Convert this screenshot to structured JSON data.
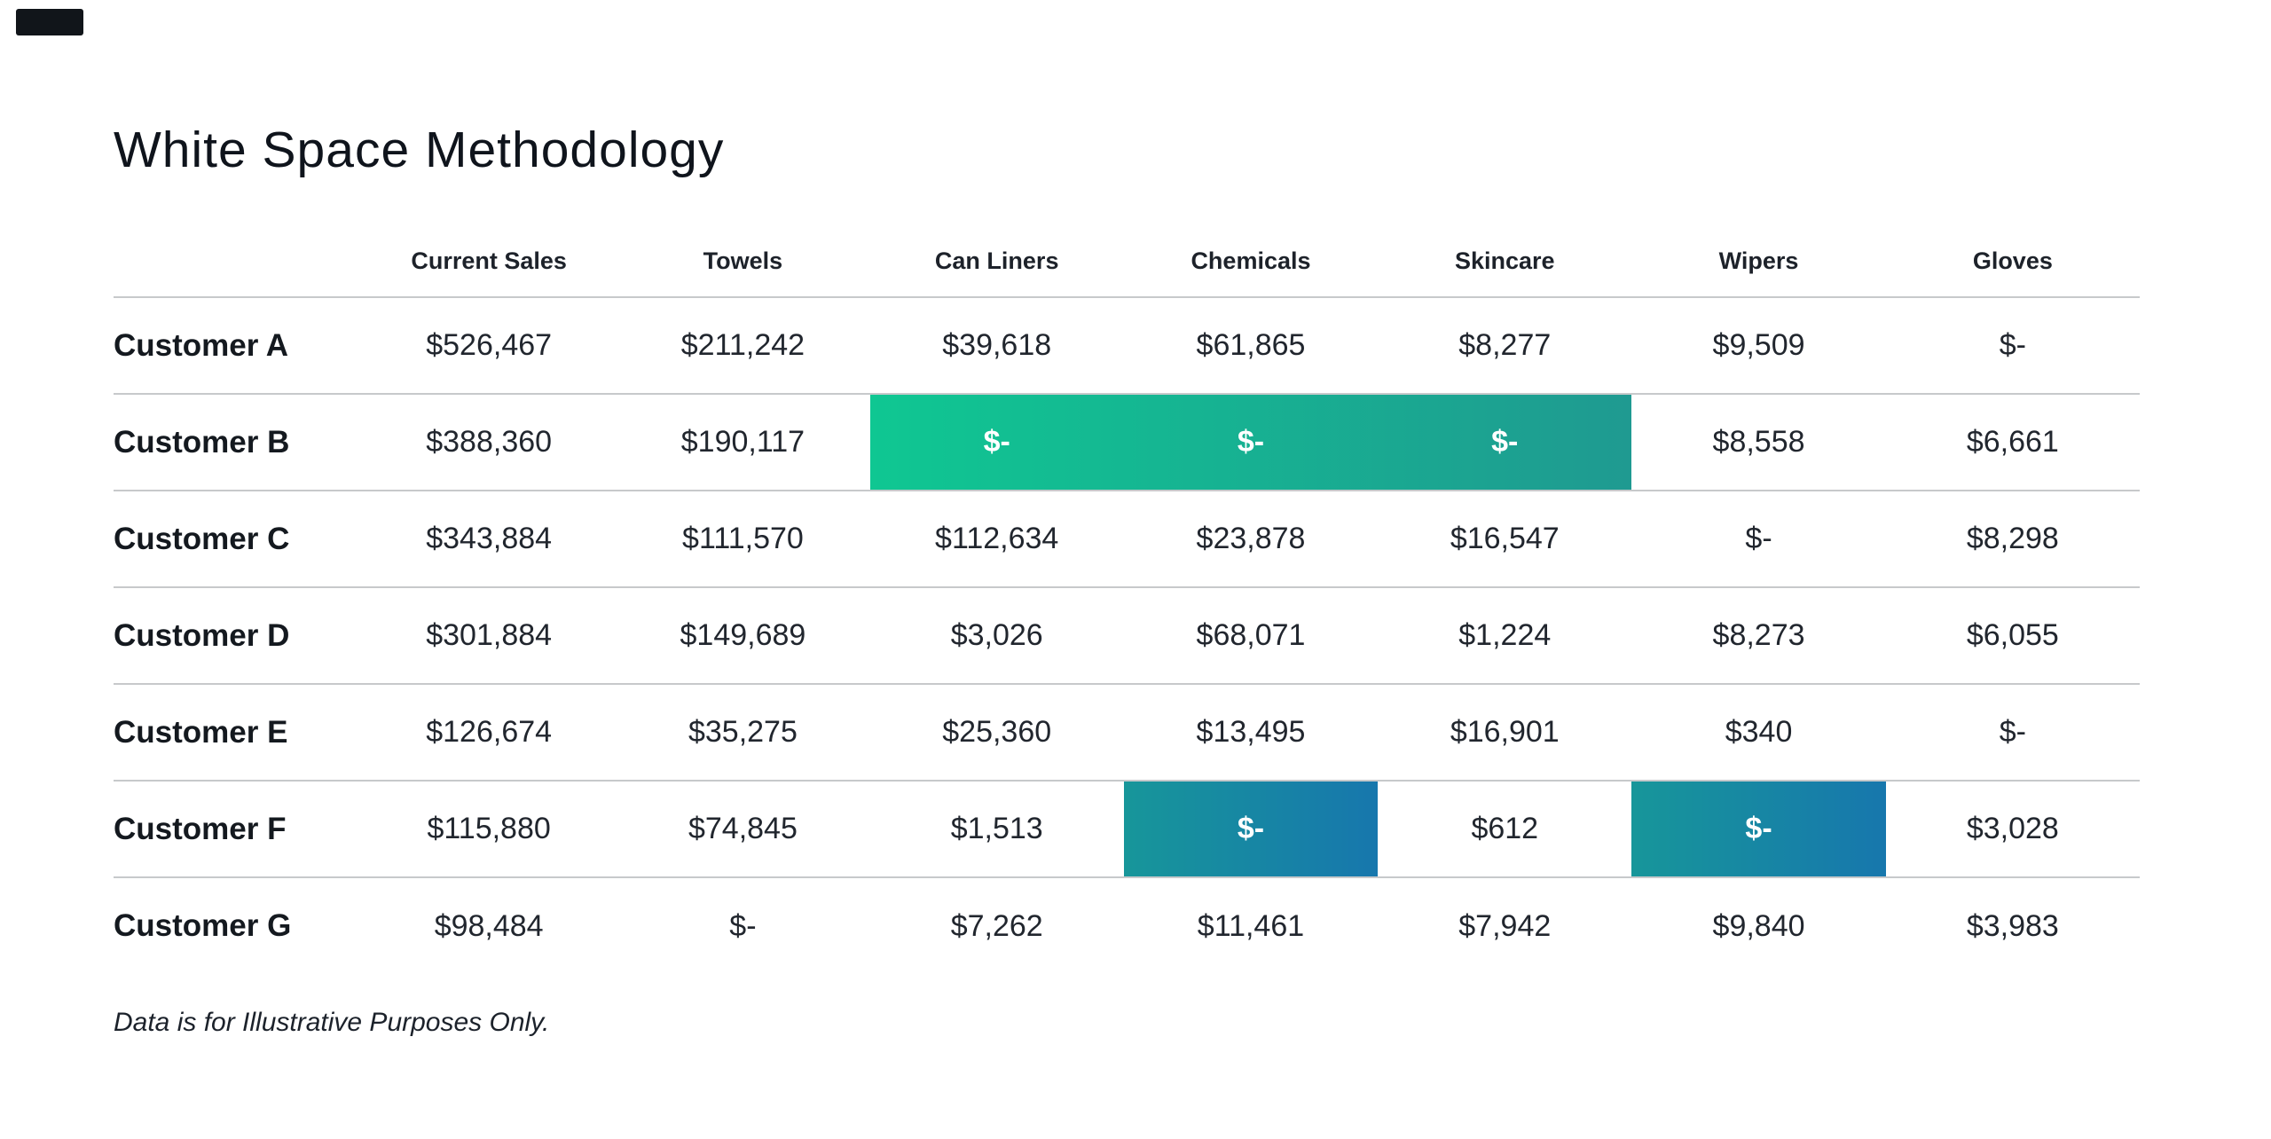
{
  "chart_data": {
    "type": "table",
    "title": "White Space Methodology",
    "footnote": "Data is for Illustrative Purposes Only.",
    "columns": [
      "",
      "Current Sales",
      "Towels",
      "Can Liners",
      "Chemicals",
      "Skincare",
      "Wipers",
      "Gloves"
    ],
    "rows": [
      {
        "label": "Customer A",
        "values": [
          "$526,467",
          "$211,242",
          "$39,618",
          "$61,865",
          "$8,277",
          "$9,509",
          "$-"
        ]
      },
      {
        "label": "Customer B",
        "values": [
          "$388,360",
          "$190,117",
          "$-",
          "$-",
          "$-",
          "$8,558",
          "$6,661"
        ],
        "highlight": {
          "style": "green-band",
          "cells": [
            2,
            3,
            4
          ]
        }
      },
      {
        "label": "Customer C",
        "values": [
          "$343,884",
          "$111,570",
          "$112,634",
          "$23,878",
          "$16,547",
          "$-",
          "$8,298"
        ]
      },
      {
        "label": "Customer D",
        "values": [
          "$301,884",
          "$149,689",
          "$3,026",
          "$68,071",
          "$1,224",
          "$8,273",
          "$6,055"
        ]
      },
      {
        "label": "Customer E",
        "values": [
          "$126,674",
          "$35,275",
          "$25,360",
          "$13,495",
          "$16,901",
          "$340",
          "$-"
        ]
      },
      {
        "label": "Customer F",
        "values": [
          "$115,880",
          "$74,845",
          "$1,513",
          "$-",
          "$612",
          "$-",
          "$3,028"
        ],
        "highlight": {
          "style": "blue-cell",
          "cells": [
            3,
            5
          ]
        }
      },
      {
        "label": "Customer G",
        "values": [
          "$98,484",
          "$-",
          "$7,262",
          "$11,461",
          "$7,942",
          "$9,840",
          "$3,983"
        ]
      }
    ],
    "highlight_colors": {
      "green_start": "#0FC792",
      "green_end": "#1F9A91",
      "blue_start": "#17969A",
      "blue_end": "#1777AD"
    }
  }
}
